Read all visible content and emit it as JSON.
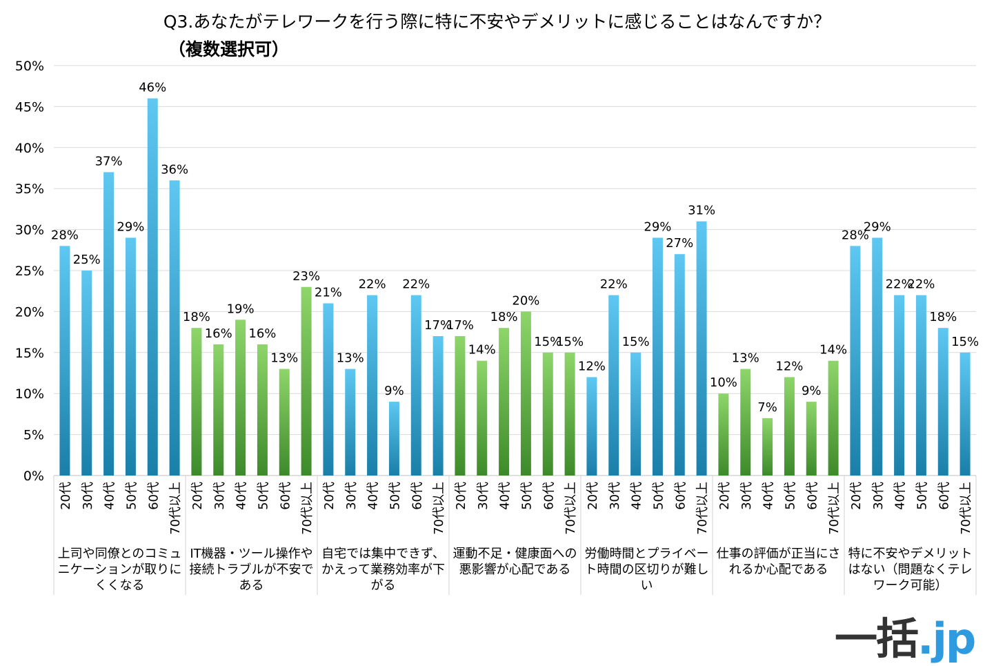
{
  "title": "Q3.あなたがテレワークを行う際に特に不安やデメリットに感じることはなんですか？",
  "subtitle": "（複数選択可）",
  "logo": {
    "kanji": "一括",
    "suffix": ".jp"
  },
  "colors": {
    "blue_top": "#5ec8f2",
    "blue_bottom": "#1a7fa8",
    "green_top": "#8ed66a",
    "green_bottom": "#3d8a2a",
    "grid": "#d9d9d9"
  },
  "chart_data": {
    "type": "bar",
    "ylim": [
      0,
      50
    ],
    "yticks": [
      "0%",
      "5%",
      "10%",
      "15%",
      "20%",
      "25%",
      "30%",
      "35%",
      "40%",
      "45%",
      "50%"
    ],
    "age_labels": [
      "20代",
      "30代",
      "40代",
      "50代",
      "60代",
      "70代以上"
    ],
    "grid": true,
    "groups": [
      {
        "name": "上司や同僚とのコミュニケーションが取りにくくなる",
        "lines": [
          "上司や同僚とのコミュ",
          "ニケーションが取りに",
          "くくなる"
        ],
        "color": "blue",
        "values": [
          28,
          25,
          37,
          29,
          46,
          36
        ],
        "labels": [
          "28%",
          "25%",
          "37%",
          "29%",
          "46%",
          "36%"
        ]
      },
      {
        "name": "IT機器・ツール操作や接続トラブルが不安である",
        "lines": [
          "IT機器・ツール操作や",
          "接続トラブルが不安で",
          "ある"
        ],
        "color": "green",
        "values": [
          18,
          16,
          19,
          16,
          13,
          23
        ],
        "labels": [
          "18%",
          "16%",
          "19%",
          "16%",
          "13%",
          "23%"
        ]
      },
      {
        "name": "自宅では集中できず、かえって業務効率が下がる",
        "lines": [
          "自宅では集中できず、",
          "かえって業務効率が下",
          "がる"
        ],
        "color": "blue",
        "values": [
          21,
          13,
          22,
          9,
          22,
          17
        ],
        "labels": [
          "21%",
          "13%",
          "22%",
          "9%",
          "22%",
          "17%"
        ]
      },
      {
        "name": "運動不足・健康面への悪影響が心配である",
        "lines": [
          "運動不足・健康面への",
          "悪影響が心配である"
        ],
        "color": "green",
        "values": [
          17,
          14,
          18,
          20,
          15,
          15
        ],
        "labels": [
          "17%",
          "14%",
          "18%",
          "20%",
          "15%",
          "15%"
        ]
      },
      {
        "name": "労働時間とプライベート時間の区切りが難しい",
        "lines": [
          "労働時間とプライベー",
          "ト時間の区切りが難し",
          "い"
        ],
        "color": "blue",
        "values": [
          12,
          22,
          15,
          29,
          27,
          31
        ],
        "labels": [
          "12%",
          "22%",
          "15%",
          "29%",
          "27%",
          "31%"
        ]
      },
      {
        "name": "仕事の評価が正当にされるか心配である",
        "lines": [
          "仕事の評価が正当にさ",
          "れるか心配である"
        ],
        "color": "green",
        "values": [
          10,
          13,
          7,
          12,
          9,
          14
        ],
        "labels": [
          "10%",
          "13%",
          "7%",
          "12%",
          "9%",
          "14%"
        ]
      },
      {
        "name": "特に不安やデメリットはない（問題なくテレワーク可能）",
        "lines": [
          "特に不安やデメリット",
          "はない（問題なくテレ",
          "ワーク可能）"
        ],
        "color": "blue",
        "values": [
          28,
          29,
          22,
          22,
          18,
          15
        ],
        "labels": [
          "28%",
          "29%",
          "22%",
          "22%",
          "18%",
          "15%"
        ]
      }
    ]
  }
}
